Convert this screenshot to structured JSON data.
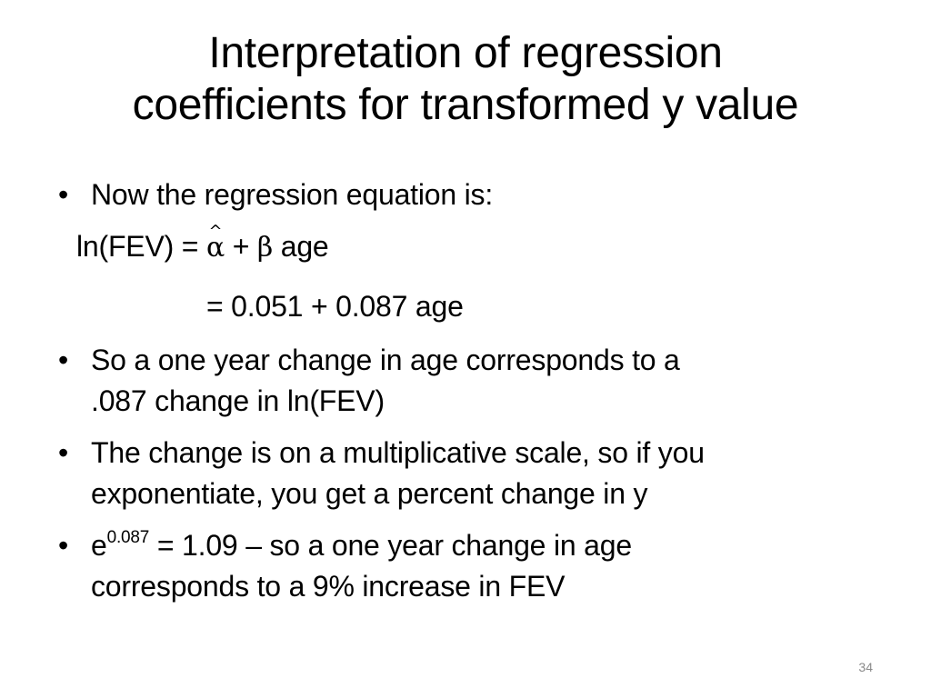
{
  "slide": {
    "title_line1": "Interpretation of regression",
    "title_line2": "coefficients for transformed y value",
    "bullet1": "Now the regression equation is:",
    "eq1_lhs": "ln(FEV) = ",
    "eq1_alpha": "α",
    "eq1_plus": " + ",
    "eq1_beta": "β",
    "eq1_rest": " age",
    "eq2": "= 0.051 + 0.087 age",
    "bullet2_line1": "So a one year change in age corresponds to a",
    "bullet2_line2": ".087 change in ln(FEV)",
    "bullet3_line1": "The change is on a multiplicative scale, so if you",
    "bullet3_line2": "exponentiate, you get a percent change in y",
    "bullet4_base": "e",
    "bullet4_exp": "0.087",
    "bullet4_line1_rest": " = 1.09 – so a one year change in age",
    "bullet4_line2": "corresponds to a 9% increase in FEV",
    "bullet_symbol": "•",
    "page_number": "34"
  }
}
